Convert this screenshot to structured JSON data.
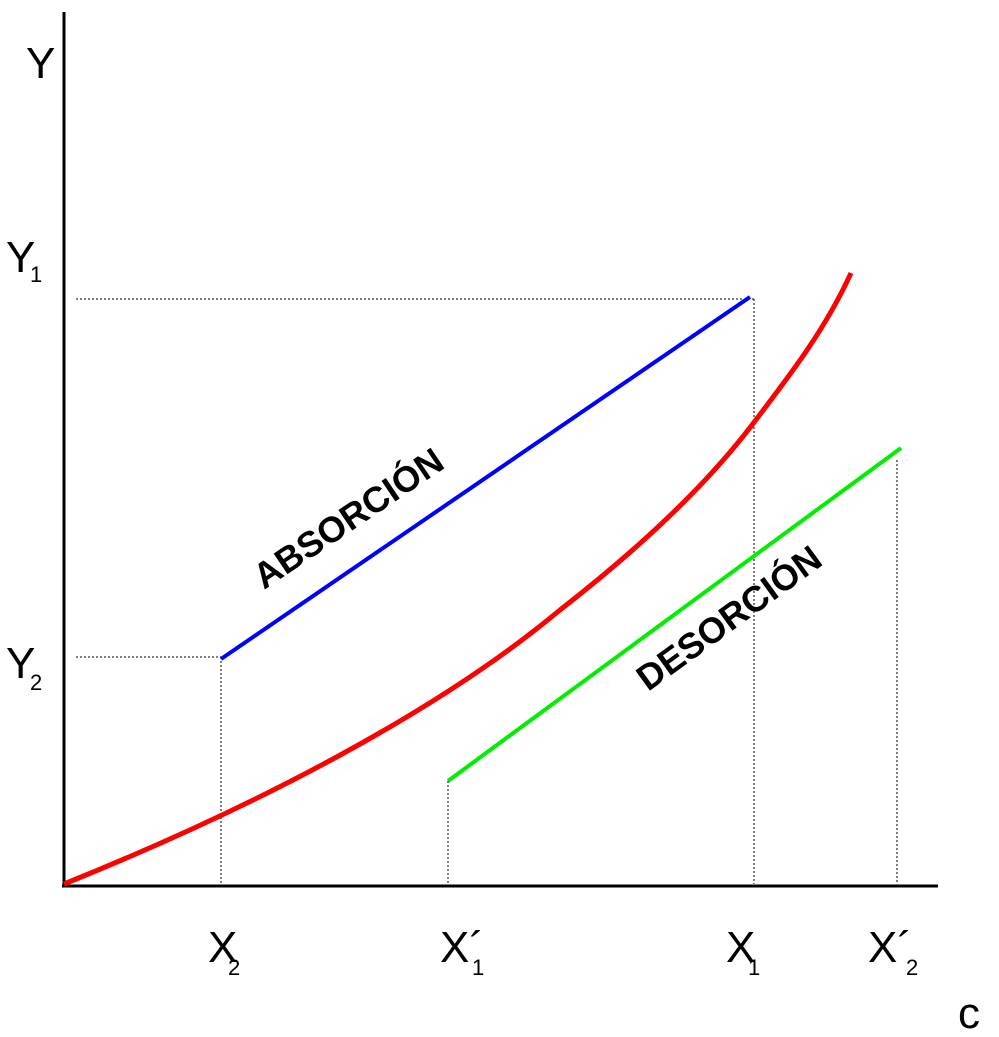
{
  "axes": {
    "y_label": "Y",
    "x_label": "c"
  },
  "y_ticks": [
    {
      "main": "Y",
      "sub": "1"
    },
    {
      "main": "Y",
      "sub": "2"
    }
  ],
  "x_ticks": [
    {
      "main": "X",
      "sub": "2"
    },
    {
      "main": "X´",
      "sub": "1"
    },
    {
      "main": "X",
      "sub": "1"
    },
    {
      "main": "X´",
      "sub": "2"
    }
  ],
  "lines": {
    "absorption": {
      "label": "ABSORCIÓN",
      "color": "#0000ff"
    },
    "desorption": {
      "label": "DESORCIÓN",
      "color": "#00ee00"
    },
    "equilibrium": {
      "color": "#ff0000"
    }
  }
}
